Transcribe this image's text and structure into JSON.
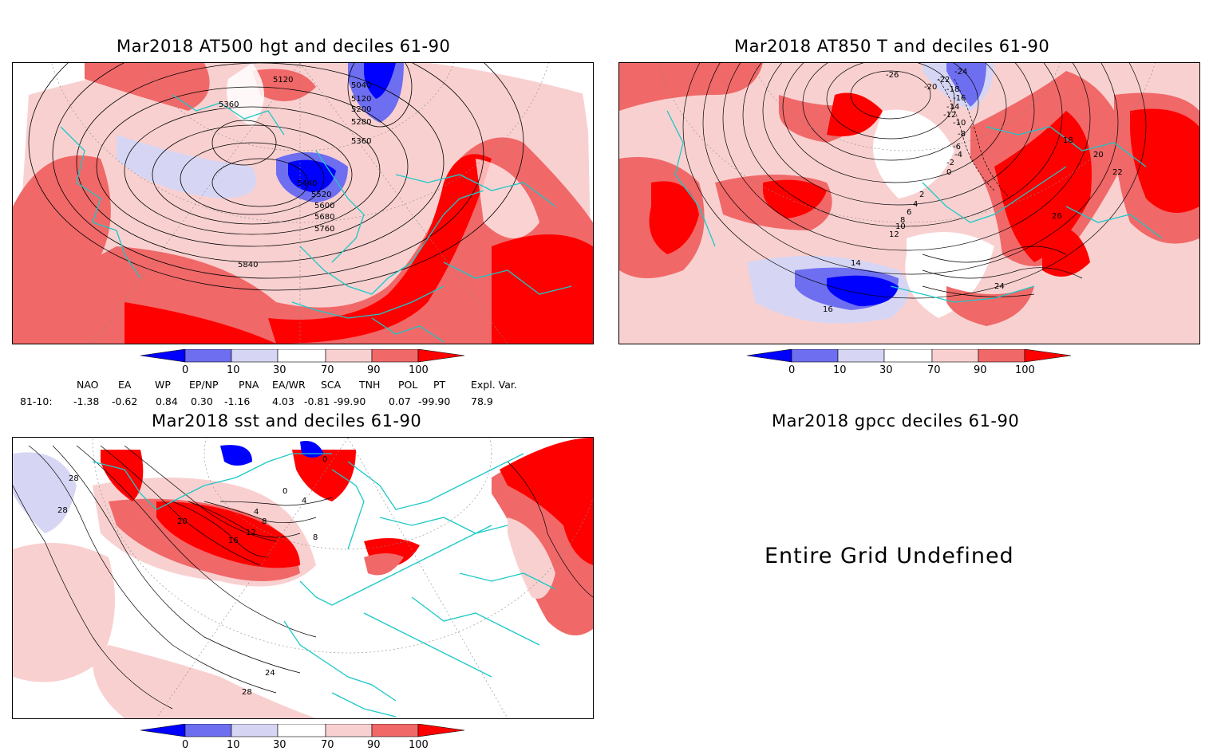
{
  "colors": {
    "below_10": "#0000ff",
    "d10_30": "#6e6ef0",
    "d30_70_low": "#d6d6f4",
    "normal": "#ffffff",
    "d70_90": "#f9d0d0",
    "d90_100": "#f06868",
    "above_100": "#ff0000",
    "coast": "#1cc8c8",
    "contour": "#000000"
  },
  "panels": [
    {
      "title": "Mar2018 AT500 hgt and deciles 61-90",
      "contour_labels": [
        "5120",
        "5040",
        "5360",
        "5120",
        "5200",
        "5280",
        "5360",
        "5440",
        "5520",
        "5600",
        "5680",
        "5760",
        "5840"
      ]
    },
    {
      "title": "Mar2018 AT850 T and deciles 61-90",
      "contour_labels": [
        "-26",
        "-24",
        "-22",
        "-20",
        "-18",
        "-16",
        "-14",
        "-12",
        "-10",
        "-8",
        "-6",
        "-4",
        "-2",
        "0",
        "2",
        "4",
        "6",
        "8",
        "10",
        "12",
        "14",
        "16",
        "18",
        "20",
        "22",
        "24",
        "26"
      ]
    },
    {
      "title": "Mar2018 sst and deciles 61-90",
      "contour_labels": [
        "28",
        "28",
        "20",
        "16",
        "12",
        "8",
        "4",
        "0",
        "0",
        "4",
        "8",
        "24",
        "28"
      ]
    },
    {
      "title": "Mar2018 gpcc deciles 61-90",
      "message": "Entire Grid Undefined"
    }
  ],
  "colorbar_ticks": [
    "0",
    "10",
    "30",
    "70",
    "90",
    "100"
  ],
  "indices": {
    "headers": [
      "NAO",
      "EA",
      "WP",
      "EP/NP",
      "PNA",
      "EA/WR",
      "SCA",
      "TNH",
      "POL",
      "PT",
      "Expl. Var."
    ],
    "row_label": "81-10:",
    "values": [
      "-1.38",
      "-0.62",
      "0.84",
      "0.30",
      "-1.16",
      "4.03",
      "-0.81",
      "-99.90",
      "0.07",
      "-99.90",
      "78.9"
    ]
  }
}
